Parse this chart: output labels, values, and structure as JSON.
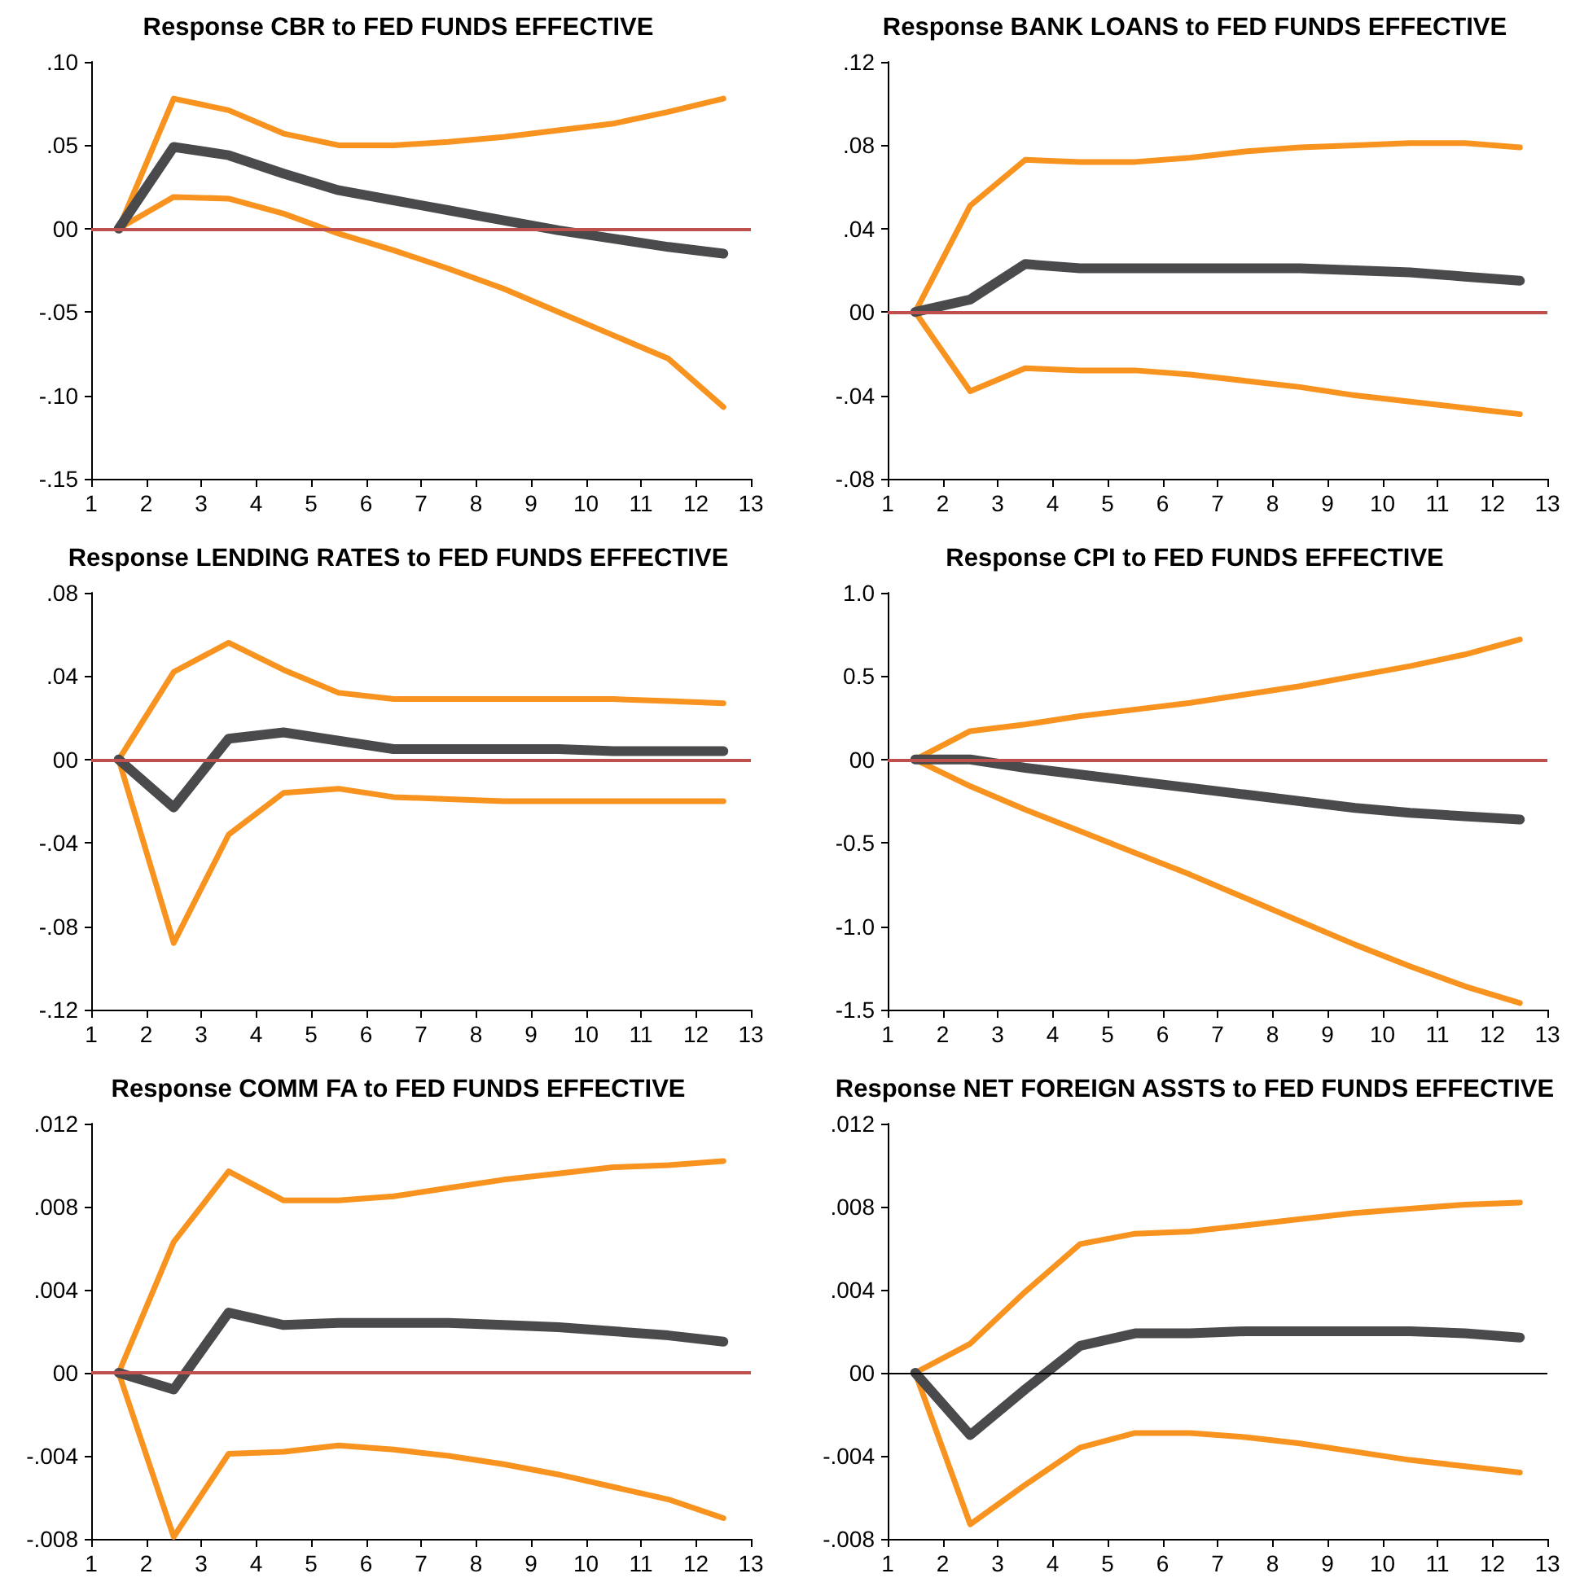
{
  "chart_data": [
    {
      "type": "line",
      "title": "Response CBR to FED FUNDS EFFECTIVE",
      "x": [
        1.5,
        2.5,
        3.5,
        4.5,
        5.5,
        6.5,
        7.5,
        8.5,
        9.5,
        10.5,
        11.5,
        12.5
      ],
      "series": [
        {
          "color": "#f7931e",
          "values": [
            0,
            0.078,
            0.071,
            0.057,
            0.05,
            0.05,
            0.052,
            0.055,
            0.059,
            0.063,
            0.07,
            0.078
          ]
        },
        {
          "color": "#f7931e",
          "values": [
            0,
            0.019,
            0.018,
            0.009,
            -0.003,
            -0.013,
            -0.024,
            -0.036,
            -0.05,
            -0.064,
            -0.078,
            -0.107
          ]
        },
        {
          "color": "#4a4a4c",
          "values": [
            0,
            0.049,
            0.044,
            0.033,
            0.023,
            0.017,
            0.011,
            0.005,
            -0.001,
            -0.006,
            -0.011,
            -0.015
          ]
        }
      ],
      "xlim": [
        1,
        13
      ],
      "xticks": [
        1,
        2,
        3,
        4,
        5,
        6,
        7,
        8,
        9,
        10,
        11,
        12,
        13
      ],
      "ylim": [
        -0.15,
        0.1
      ],
      "yticks": [
        {
          "value": -0.15,
          "label": "-.15"
        },
        {
          "value": -0.1,
          "label": "-.10"
        },
        {
          "value": -0.05,
          "label": "-.05"
        },
        {
          "value": 0,
          "label": "00"
        },
        {
          "value": 0.05,
          "label": ".05"
        },
        {
          "value": 0.1,
          "label": ".10"
        }
      ],
      "ref_lines": [
        {
          "axis": "y",
          "value": 0,
          "color": "#c0504d"
        }
      ],
      "grid": false,
      "marker": "none",
      "line_style": "solid"
    },
    {
      "type": "line",
      "title": "Response BANK LOANS to FED FUNDS EFFECTIVE",
      "x": [
        1.5,
        2.5,
        3.5,
        4.5,
        5.5,
        6.5,
        7.5,
        8.5,
        9.5,
        10.5,
        11.5,
        12.5
      ],
      "series": [
        {
          "color": "#f7931e",
          "values": [
            0,
            0.051,
            0.073,
            0.072,
            0.072,
            0.074,
            0.077,
            0.079,
            0.08,
            0.081,
            0.081,
            0.079
          ]
        },
        {
          "color": "#f7931e",
          "values": [
            0,
            -0.038,
            -0.027,
            -0.028,
            -0.028,
            -0.03,
            -0.033,
            -0.036,
            -0.04,
            -0.043,
            -0.046,
            -0.049
          ]
        },
        {
          "color": "#4a4a4c",
          "values": [
            0,
            0.006,
            0.023,
            0.021,
            0.021,
            0.021,
            0.021,
            0.021,
            0.02,
            0.019,
            0.017,
            0.015
          ]
        }
      ],
      "xlim": [
        1,
        13
      ],
      "xticks": [
        1,
        2,
        3,
        4,
        5,
        6,
        7,
        8,
        9,
        10,
        11,
        12,
        13
      ],
      "ylim": [
        -0.08,
        0.12
      ],
      "yticks": [
        {
          "value": -0.08,
          "label": "-.08"
        },
        {
          "value": -0.04,
          "label": "-.04"
        },
        {
          "value": 0,
          "label": "00"
        },
        {
          "value": 0.04,
          "label": ".04"
        },
        {
          "value": 0.08,
          "label": ".08"
        },
        {
          "value": 0.12,
          "label": ".12"
        }
      ],
      "ref_lines": [
        {
          "axis": "y",
          "value": 0,
          "color": "#c0504d"
        }
      ],
      "grid": false,
      "marker": "none",
      "line_style": "solid"
    },
    {
      "type": "line",
      "title": "Response LENDING RATES to FED FUNDS EFFECTIVE",
      "x": [
        1.5,
        2.5,
        3.5,
        4.5,
        5.5,
        6.5,
        7.5,
        8.5,
        9.5,
        10.5,
        11.5,
        12.5
      ],
      "series": [
        {
          "color": "#f7931e",
          "values": [
            0,
            0.042,
            0.056,
            0.043,
            0.032,
            0.029,
            0.029,
            0.029,
            0.029,
            0.029,
            0.028,
            0.027
          ]
        },
        {
          "color": "#f7931e",
          "values": [
            0,
            -0.088,
            -0.036,
            -0.016,
            -0.014,
            -0.018,
            -0.019,
            -0.02,
            -0.02,
            -0.02,
            -0.02,
            -0.02
          ]
        },
        {
          "color": "#4a4a4c",
          "values": [
            0,
            -0.023,
            0.01,
            0.013,
            0.009,
            0.005,
            0.005,
            0.005,
            0.005,
            0.004,
            0.004,
            0.004
          ]
        }
      ],
      "xlim": [
        1,
        13
      ],
      "xticks": [
        1,
        2,
        3,
        4,
        5,
        6,
        7,
        8,
        9,
        10,
        11,
        12,
        13
      ],
      "ylim": [
        -0.12,
        0.08
      ],
      "yticks": [
        {
          "value": -0.12,
          "label": "-.12"
        },
        {
          "value": -0.08,
          "label": "-.08"
        },
        {
          "value": -0.04,
          "label": "-.04"
        },
        {
          "value": 0,
          "label": "00"
        },
        {
          "value": 0.04,
          "label": ".04"
        },
        {
          "value": 0.08,
          "label": ".08"
        }
      ],
      "ref_lines": [
        {
          "axis": "y",
          "value": 0,
          "color": "#c0504d"
        }
      ],
      "grid": false,
      "marker": "none",
      "line_style": "solid"
    },
    {
      "type": "line",
      "title": "Response CPI to FED FUNDS EFFECTIVE",
      "x": [
        1.5,
        2.5,
        3.5,
        4.5,
        5.5,
        6.5,
        7.5,
        8.5,
        9.5,
        10.5,
        11.5,
        12.5
      ],
      "series": [
        {
          "color": "#f7931e",
          "values": [
            0,
            0.17,
            0.21,
            0.26,
            0.3,
            0.34,
            0.39,
            0.44,
            0.5,
            0.56,
            0.63,
            0.72
          ]
        },
        {
          "color": "#f7931e",
          "values": [
            0,
            -0.16,
            -0.3,
            -0.43,
            -0.56,
            -0.69,
            -0.83,
            -0.97,
            -1.11,
            -1.24,
            -1.36,
            -1.46
          ]
        },
        {
          "color": "#4a4a4c",
          "values": [
            0,
            0,
            -0.05,
            -0.09,
            -0.13,
            -0.17,
            -0.21,
            -0.25,
            -0.29,
            -0.32,
            -0.34,
            -0.36
          ]
        }
      ],
      "xlim": [
        1,
        13
      ],
      "xticks": [
        1,
        2,
        3,
        4,
        5,
        6,
        7,
        8,
        9,
        10,
        11,
        12,
        13
      ],
      "ylim": [
        -1.5,
        1.0
      ],
      "yticks": [
        {
          "value": -1.5,
          "label": "-1.5"
        },
        {
          "value": -1.0,
          "label": "-1.0"
        },
        {
          "value": -0.5,
          "label": "-0.5"
        },
        {
          "value": 0,
          "label": "00"
        },
        {
          "value": 0.5,
          "label": "0.5"
        },
        {
          "value": 1.0,
          "label": "1.0"
        }
      ],
      "ref_lines": [
        {
          "axis": "y",
          "value": 0,
          "color": "#c0504d"
        }
      ],
      "grid": false,
      "marker": "none",
      "line_style": "solid"
    },
    {
      "type": "line",
      "title": "Response COMM FA to FED FUNDS EFFECTIVE",
      "x": [
        1.5,
        2.5,
        3.5,
        4.5,
        5.5,
        6.5,
        7.5,
        8.5,
        9.5,
        10.5,
        11.5,
        12.5
      ],
      "series": [
        {
          "color": "#f7931e",
          "values": [
            0,
            0.0063,
            0.0097,
            0.0083,
            0.0083,
            0.0085,
            0.0089,
            0.0093,
            0.0096,
            0.0099,
            0.01,
            0.0102
          ]
        },
        {
          "color": "#f7931e",
          "values": [
            0,
            -0.0079,
            -0.0039,
            -0.0038,
            -0.0035,
            -0.0037,
            -0.004,
            -0.0044,
            -0.0049,
            -0.0055,
            -0.0061,
            -0.007
          ]
        },
        {
          "color": "#4a4a4c",
          "values": [
            0,
            -0.0008,
            0.0029,
            0.0023,
            0.0024,
            0.0024,
            0.0024,
            0.0023,
            0.0022,
            0.002,
            0.0018,
            0.0015
          ]
        }
      ],
      "xlim": [
        1,
        13
      ],
      "xticks": [
        1,
        2,
        3,
        4,
        5,
        6,
        7,
        8,
        9,
        10,
        11,
        12,
        13
      ],
      "ylim": [
        -0.008,
        0.012
      ],
      "yticks": [
        {
          "value": -0.008,
          "label": "-.008"
        },
        {
          "value": -0.004,
          "label": "-.004"
        },
        {
          "value": 0,
          "label": "00"
        },
        {
          "value": 0.004,
          "label": ".004"
        },
        {
          "value": 0.008,
          "label": ".008"
        },
        {
          "value": 0.012,
          "label": ".012"
        }
      ],
      "ref_lines": [
        {
          "axis": "y",
          "value": 0,
          "color": "#c0504d"
        }
      ],
      "grid": false,
      "marker": "none",
      "line_style": "solid"
    },
    {
      "type": "line",
      "title": "Response NET FOREIGN ASSTS to FED FUNDS EFFECTIVE",
      "x": [
        1.5,
        2.5,
        3.5,
        4.5,
        5.5,
        6.5,
        7.5,
        8.5,
        9.5,
        10.5,
        11.5,
        12.5
      ],
      "series": [
        {
          "color": "#f7931e",
          "values": [
            0,
            0.0014,
            0.0039,
            0.0062,
            0.0067,
            0.0068,
            0.0071,
            0.0074,
            0.0077,
            0.0079,
            0.0081,
            0.0082
          ]
        },
        {
          "color": "#f7931e",
          "values": [
            0,
            -0.0073,
            -0.0054,
            -0.0036,
            -0.0029,
            -0.0029,
            -0.0031,
            -0.0034,
            -0.0038,
            -0.0042,
            -0.0045,
            -0.0048
          ]
        },
        {
          "color": "#4a4a4c",
          "values": [
            0,
            -0.003,
            -0.0008,
            0.0013,
            0.0019,
            0.0019,
            0.002,
            0.002,
            0.002,
            0.002,
            0.0019,
            0.0017
          ]
        }
      ],
      "xlim": [
        1,
        13
      ],
      "xticks": [
        1,
        2,
        3,
        4,
        5,
        6,
        7,
        8,
        9,
        10,
        11,
        12,
        13
      ],
      "ylim": [
        -0.008,
        0.012
      ],
      "yticks": [
        {
          "value": -0.008,
          "label": "-.008"
        },
        {
          "value": -0.004,
          "label": "-.004"
        },
        {
          "value": 0,
          "label": "00"
        },
        {
          "value": 0.004,
          "label": ".004"
        },
        {
          "value": 0.008,
          "label": ".008"
        },
        {
          "value": 0.012,
          "label": ".012"
        }
      ],
      "ref_lines": [
        {
          "axis": "y",
          "value": 0,
          "color": "#000000"
        }
      ],
      "grid": false,
      "marker": "none",
      "line_style": "solid"
    }
  ]
}
